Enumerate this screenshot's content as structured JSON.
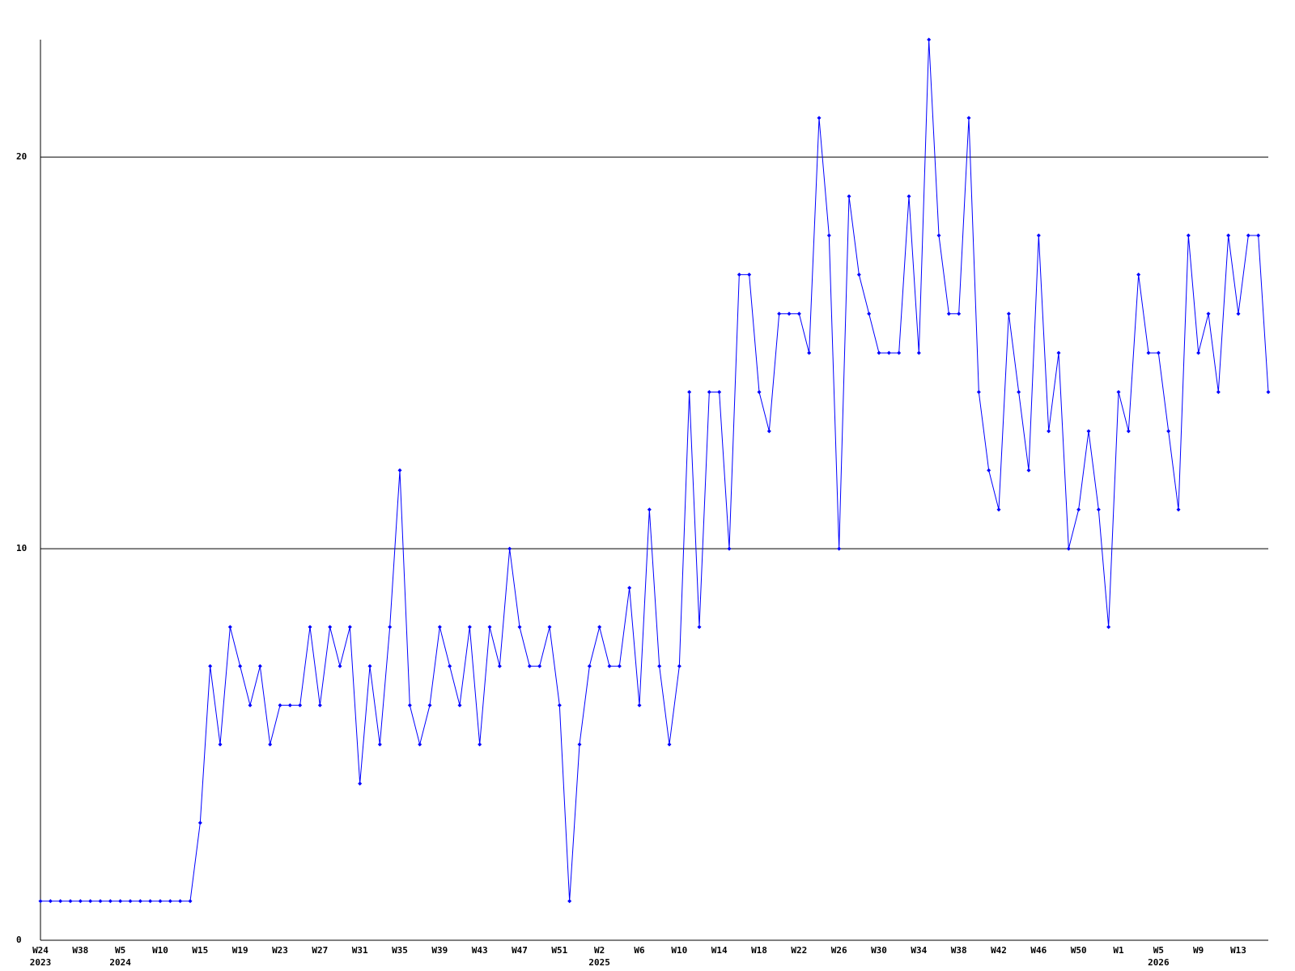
{
  "chart_data": {
    "type": "line",
    "categories": [
      "W24",
      null,
      null,
      null,
      "W38",
      null,
      null,
      null,
      "W5",
      null,
      null,
      null,
      "W10",
      null,
      null,
      null,
      "W15",
      null,
      null,
      null,
      "W19",
      null,
      null,
      null,
      "W23",
      null,
      null,
      null,
      "W27",
      null,
      null,
      null,
      "W31",
      null,
      null,
      null,
      "W35",
      null,
      null,
      null,
      "W39",
      null,
      null,
      null,
      "W43",
      null,
      null,
      null,
      "W47",
      null,
      null,
      null,
      "W51",
      null,
      null,
      null,
      "W2",
      null,
      null,
      null,
      "W6",
      null,
      null,
      null,
      "W10",
      null,
      null,
      null,
      "W14",
      null,
      null,
      null,
      "W18",
      null,
      null,
      null,
      "W22",
      null,
      null,
      null,
      "W26",
      null,
      null,
      null,
      "W30",
      null,
      null,
      null,
      "W34",
      null,
      null,
      null,
      "W38",
      null,
      null,
      null,
      "W42",
      null,
      null,
      null,
      "W46",
      null,
      null,
      null,
      "W50",
      null,
      null,
      null,
      "W1",
      null,
      null,
      null,
      "W5",
      null,
      null,
      null,
      "W9",
      null,
      null,
      null,
      "W13",
      null,
      null,
      null
    ],
    "years": [
      "2023",
      null,
      null,
      null,
      null,
      null,
      null,
      null,
      "2024",
      null,
      null,
      null,
      null,
      null,
      null,
      null,
      null,
      null,
      null,
      null,
      null,
      null,
      null,
      null,
      null,
      null,
      null,
      null,
      null,
      null,
      null,
      null,
      null,
      null,
      null,
      null,
      null,
      null,
      null,
      null,
      null,
      null,
      null,
      null,
      null,
      null,
      null,
      null,
      null,
      null,
      null,
      null,
      null,
      null,
      null,
      null,
      "2025",
      null,
      null,
      null,
      null,
      null,
      null,
      null,
      null,
      null,
      null,
      null,
      null,
      null,
      null,
      null,
      null,
      null,
      null,
      null,
      null,
      null,
      null,
      null,
      null,
      null,
      null,
      null,
      null,
      null,
      null,
      null,
      null,
      null,
      null,
      null,
      null,
      null,
      null,
      null,
      null,
      null,
      null,
      null,
      null,
      null,
      null,
      null,
      null,
      null,
      null,
      null,
      null,
      null,
      null,
      null,
      "2026",
      null,
      null,
      null,
      null,
      null,
      null,
      null,
      null,
      null,
      null,
      null,
      null,
      null,
      null,
      null
    ],
    "values": [
      1,
      1,
      1,
      1,
      1,
      1,
      1,
      1,
      1,
      1,
      1,
      1,
      1,
      1,
      1,
      1,
      3,
      7,
      5,
      8,
      7,
      6,
      7,
      5,
      6,
      6,
      6,
      8,
      6,
      8,
      7,
      8,
      4,
      7,
      5,
      8,
      12,
      6,
      5,
      6,
      8,
      7,
      6,
      8,
      5,
      8,
      7,
      10,
      8,
      7,
      7,
      8,
      6,
      1,
      5,
      7,
      8,
      7,
      7,
      9,
      6,
      11,
      7,
      5,
      7,
      14,
      8,
      14,
      14,
      10,
      17,
      17,
      14,
      13,
      16,
      16,
      16,
      15,
      21,
      18,
      10,
      19,
      17,
      16,
      15,
      15,
      15,
      19,
      15,
      23,
      18,
      16,
      16,
      21,
      14,
      12,
      11,
      16,
      14,
      12,
      18,
      13,
      15,
      10,
      11,
      13,
      11,
      8,
      14,
      13,
      17,
      15,
      15,
      13,
      11,
      18,
      15,
      16,
      14,
      18,
      16,
      18,
      18,
      14
    ],
    "color": "#0000ff",
    "ylim": [
      0,
      23
    ],
    "yticks": [
      0,
      10,
      20
    ],
    "grid": true
  }
}
